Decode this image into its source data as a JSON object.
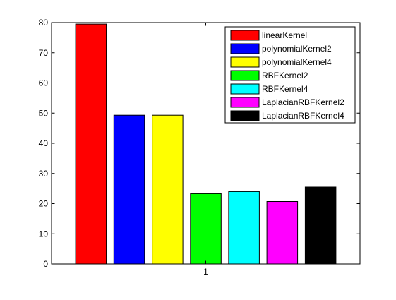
{
  "chart_data": {
    "type": "bar",
    "categories": [
      "1"
    ],
    "series": [
      {
        "name": "linearKernel",
        "values": [
          79.5
        ],
        "color": "#ff0000"
      },
      {
        "name": "polynomialKernel2",
        "values": [
          49.3
        ],
        "color": "#0000ff"
      },
      {
        "name": "polynomialKernel4",
        "values": [
          49.3
        ],
        "color": "#ffff00"
      },
      {
        "name": "RBFKernel2",
        "values": [
          23.3
        ],
        "color": "#00ff00"
      },
      {
        "name": "RBFKernel4",
        "values": [
          24.0
        ],
        "color": "#00ffff"
      },
      {
        "name": "LaplacianRBFKernel2",
        "values": [
          20.7
        ],
        "color": "#ff00ff"
      },
      {
        "name": "LaplacianRBFKernel4",
        "values": [
          25.5
        ],
        "color": "#000000"
      }
    ],
    "ylim": [
      0,
      80
    ],
    "yticks": [
      "0",
      "10",
      "20",
      "30",
      "40",
      "50",
      "60",
      "70",
      "80"
    ],
    "title": "",
    "xlabel": "",
    "ylabel": "",
    "grid": false,
    "legend": "top-right"
  }
}
